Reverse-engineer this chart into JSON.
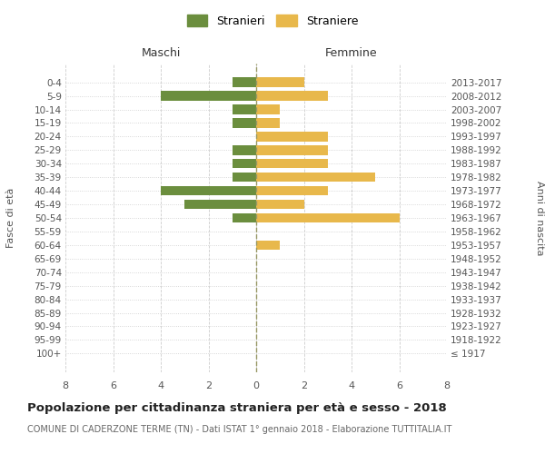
{
  "age_groups": [
    "100+",
    "95-99",
    "90-94",
    "85-89",
    "80-84",
    "75-79",
    "70-74",
    "65-69",
    "60-64",
    "55-59",
    "50-54",
    "45-49",
    "40-44",
    "35-39",
    "30-34",
    "25-29",
    "20-24",
    "15-19",
    "10-14",
    "5-9",
    "0-4"
  ],
  "birth_years": [
    "≤ 1917",
    "1918-1922",
    "1923-1927",
    "1928-1932",
    "1933-1937",
    "1938-1942",
    "1943-1947",
    "1948-1952",
    "1953-1957",
    "1958-1962",
    "1963-1967",
    "1968-1972",
    "1973-1977",
    "1978-1982",
    "1983-1987",
    "1988-1992",
    "1993-1997",
    "1998-2002",
    "2003-2007",
    "2008-2012",
    "2013-2017"
  ],
  "maschi": [
    0,
    0,
    0,
    0,
    0,
    0,
    0,
    0,
    0,
    0,
    1,
    3,
    4,
    1,
    1,
    1,
    0,
    1,
    1,
    4,
    1
  ],
  "femmine": [
    0,
    0,
    0,
    0,
    0,
    0,
    0,
    0,
    1,
    0,
    6,
    2,
    3,
    5,
    3,
    3,
    3,
    1,
    1,
    3,
    2
  ],
  "color_maschi": "#6b8e3e",
  "color_femmine": "#e8b84b",
  "title": "Popolazione per cittadinanza straniera per età e sesso - 2018",
  "subtitle": "COMUNE DI CADERZONE TERME (TN) - Dati ISTAT 1° gennaio 2018 - Elaborazione TUTTITALIA.IT",
  "xlabel_left": "Maschi",
  "xlabel_right": "Femmine",
  "ylabel_left": "Fasce di età",
  "ylabel_right": "Anni di nascita",
  "legend_maschi": "Stranieri",
  "legend_femmine": "Straniere",
  "xlim": 8,
  "background_color": "#ffffff",
  "grid_color": "#cccccc"
}
